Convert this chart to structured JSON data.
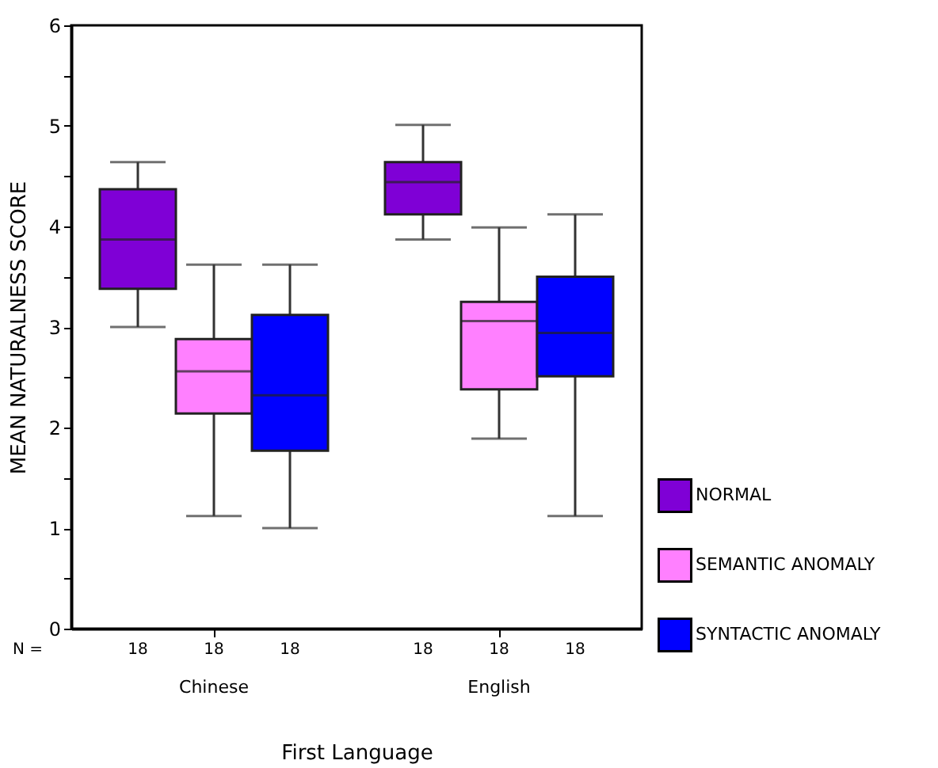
{
  "chart_data": {
    "type": "box",
    "xlabel": "First Language",
    "ylabel": "MEAN NATURALNESS SCORE",
    "categories": [
      "Chinese",
      "English"
    ],
    "series": [
      {
        "name": "NORMAL",
        "color": "#7f00d6",
        "boxes": [
          {
            "low": 3.0,
            "q1": 3.38,
            "median": 3.87,
            "q3": 4.37,
            "high": 4.64
          },
          {
            "low": 3.87,
            "q1": 4.12,
            "median": 4.44,
            "q3": 4.64,
            "high": 5.01
          }
        ]
      },
      {
        "name": "SEMANTIC ANOMALY",
        "color": "#ff80ff",
        "boxes": [
          {
            "low": 1.12,
            "q1": 2.14,
            "median": 2.56,
            "q3": 2.88,
            "high": 3.62
          },
          {
            "low": 1.89,
            "q1": 2.38,
            "median": 3.06,
            "q3": 3.25,
            "high": 3.99
          }
        ]
      },
      {
        "name": "SYNTACTIC ANOMALY",
        "color": "#0000ff",
        "boxes": [
          {
            "low": 1.0,
            "q1": 1.77,
            "median": 2.32,
            "q3": 3.12,
            "high": 3.62
          },
          {
            "low": 1.12,
            "q1": 2.51,
            "median": 2.94,
            "q3": 3.5,
            "high": 4.12
          }
        ]
      }
    ],
    "ylim": [
      0,
      6
    ],
    "yticks": [
      0,
      {
        "value": 0.5,
        "label": null
      },
      1,
      {
        "value": 1.5,
        "label": null
      },
      2,
      {
        "value": 2.5,
        "label": null
      },
      3,
      {
        "value": 3.5,
        "label": null
      },
      4,
      {
        "value": 4.5,
        "label": null
      },
      5,
      {
        "value": 5.5,
        "label": null
      },
      6
    ],
    "annotations": [
      "N =",
      "18",
      "18",
      "18",
      "18",
      "18",
      "18"
    ],
    "grid": false,
    "legend": "bottom right"
  }
}
